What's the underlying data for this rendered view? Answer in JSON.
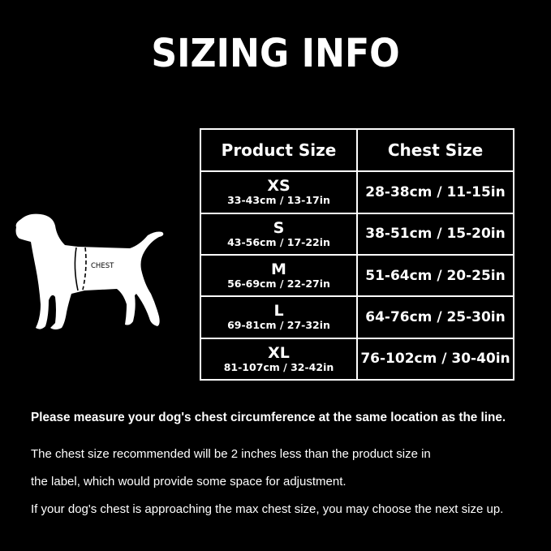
{
  "title": "SIZING INFO",
  "table": {
    "headers": [
      "Product Size",
      "Chest Size"
    ],
    "rows": [
      {
        "size": "XS",
        "product_range": "33-43cm / 13-17in",
        "chest": "28-38cm / 11-15in"
      },
      {
        "size": "S",
        "product_range": "43-56cm / 17-22in",
        "chest": "38-51cm / 15-20in"
      },
      {
        "size": "M",
        "product_range": "56-69cm / 22-27in",
        "chest": "51-64cm / 20-25in"
      },
      {
        "size": "L",
        "product_range": "69-81cm / 27-32in",
        "chest": "64-76cm / 25-30in"
      },
      {
        "size": "XL",
        "product_range": "81-107cm / 32-42in",
        "chest": "76-102cm / 30-40in"
      }
    ]
  },
  "dog_label": "CHEST",
  "notes": {
    "measure": "Please measure your dog's chest circumference at the same location as the line.",
    "line1": "The chest size recommended will be 2 inches less than the product size in",
    "line2": "the label, which would provide some space for adjustment.",
    "line3": "If your dog's chest is approaching the max chest size, you may choose the next size up."
  },
  "colors": {
    "background": "#000000",
    "foreground": "#ffffff"
  }
}
